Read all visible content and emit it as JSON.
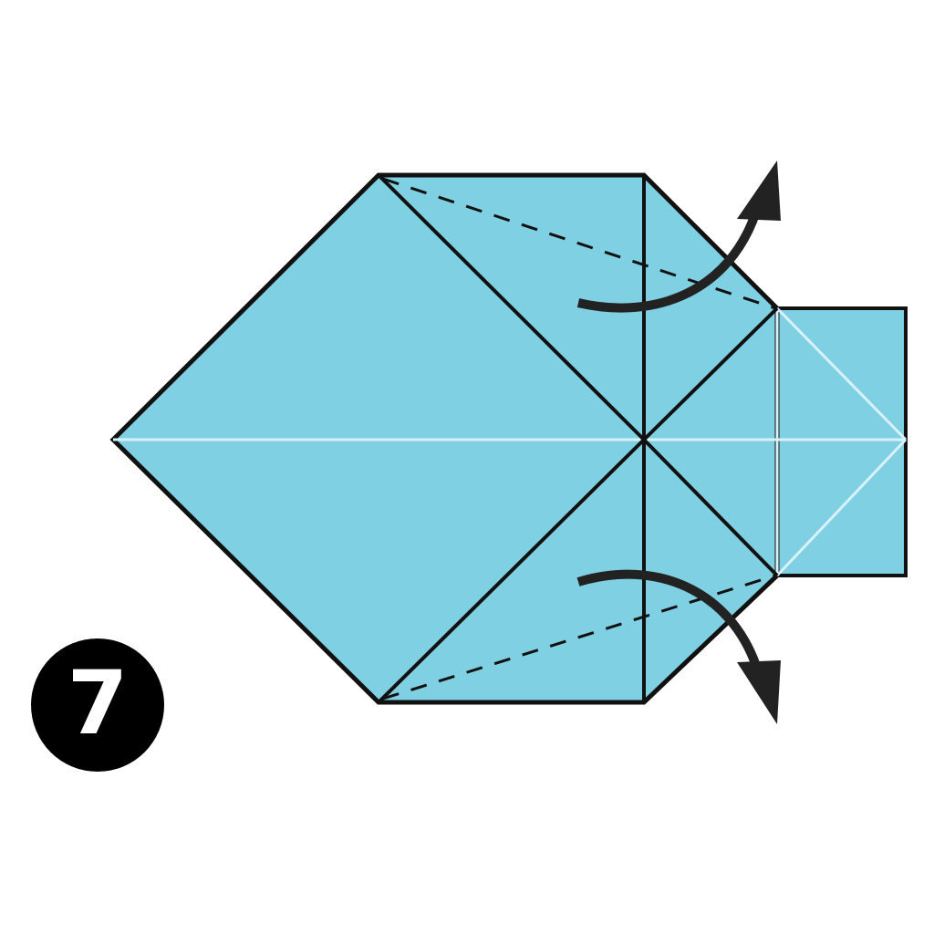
{
  "step": {
    "number": "7"
  },
  "colors": {
    "paper": "#7fd0e3",
    "outline": "#111111",
    "crease": "#d9f2fa",
    "arrow": "#222222",
    "badge": "#000000",
    "badge_text": "#ffffff",
    "background": "#ffffff"
  },
  "icons": {
    "top_arrow": "curved-arrow-up-icon",
    "bottom_arrow": "curved-arrow-down-icon"
  }
}
